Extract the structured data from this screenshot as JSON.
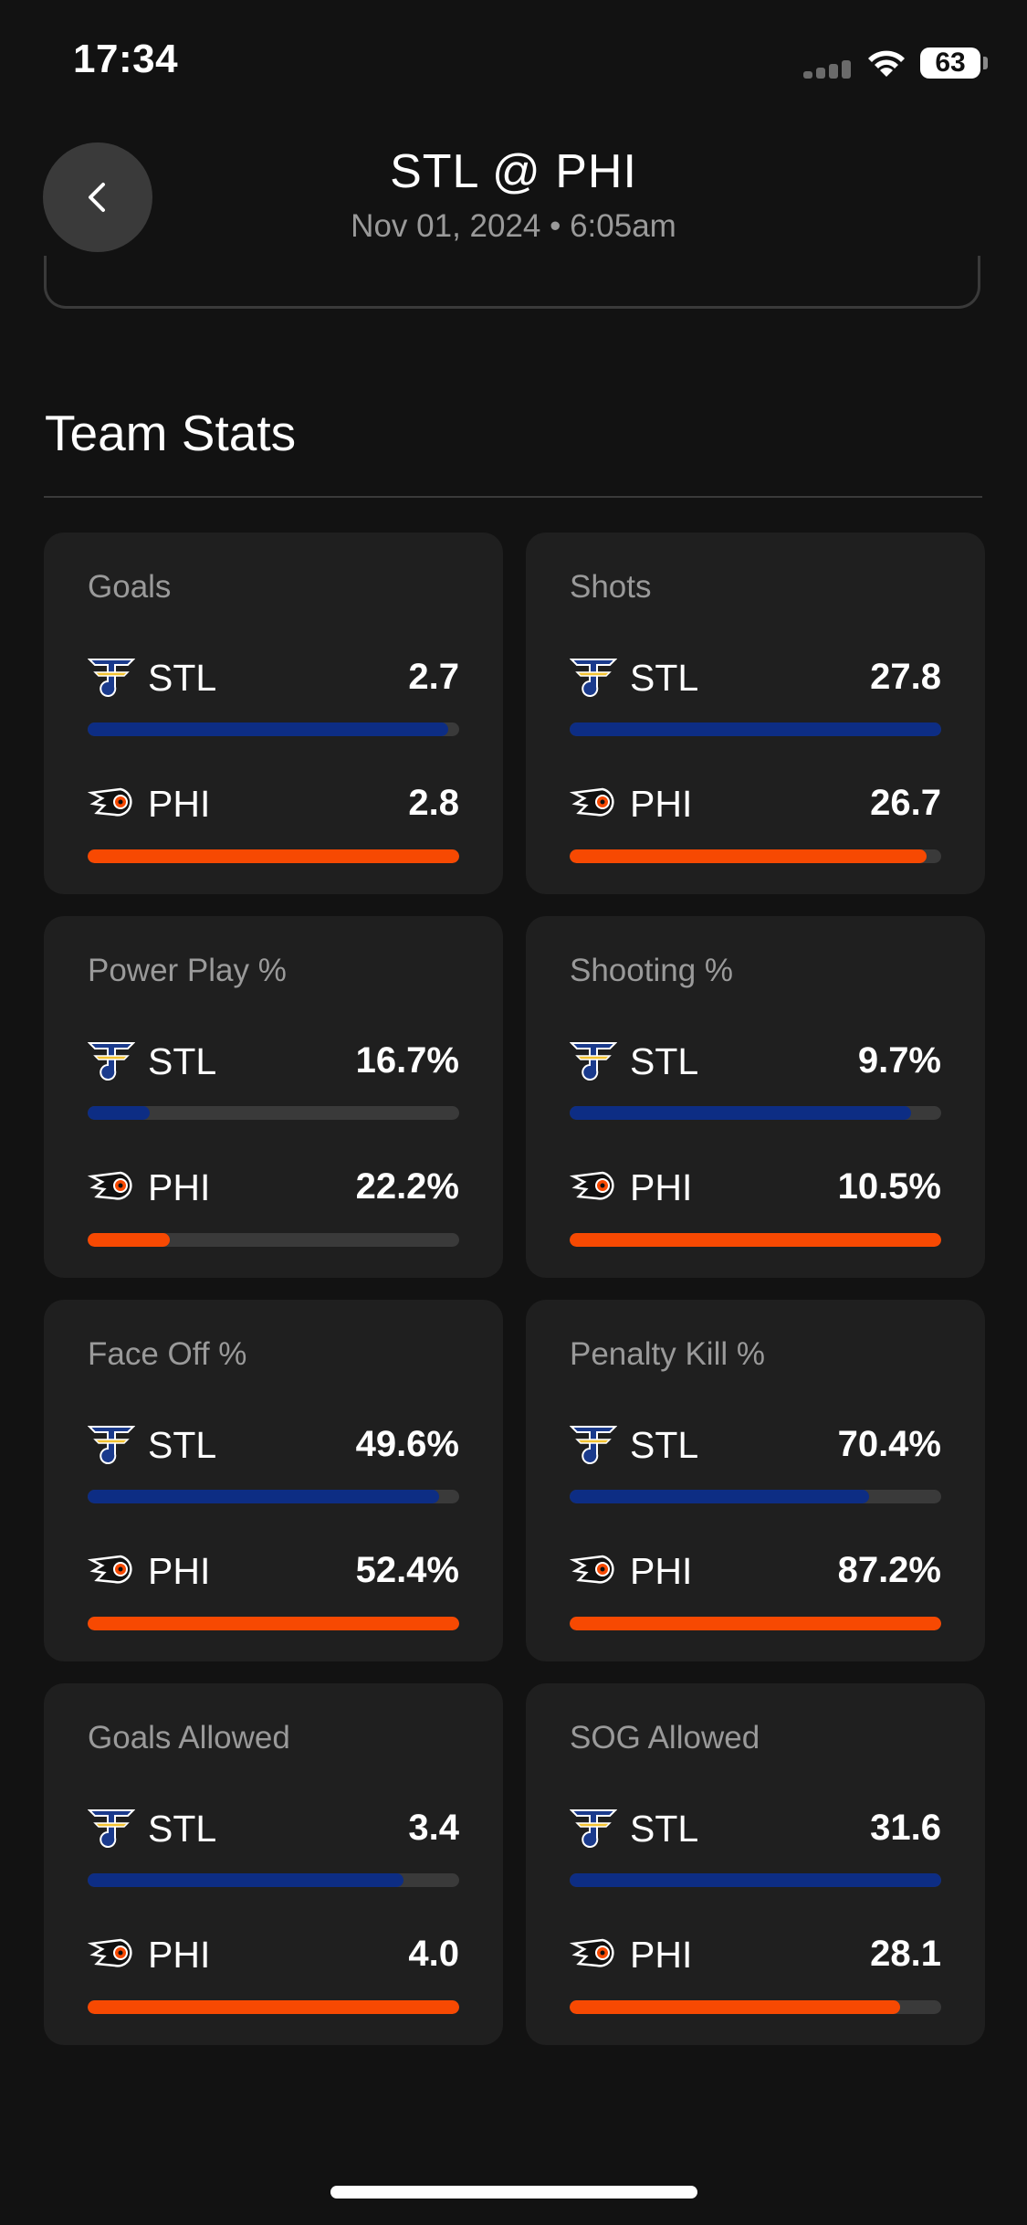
{
  "status_bar": {
    "time": "17:34",
    "battery": "63",
    "icons": [
      "signal-icon",
      "wifi-icon",
      "battery-icon"
    ]
  },
  "header": {
    "title": "STL @ PHI",
    "subtitle": "Nov 01, 2024 • 6:05am",
    "back_icon": "chevron-left-icon"
  },
  "section": {
    "title": "Team Stats"
  },
  "colors": {
    "stl": "#0d2d84",
    "phi": "#f74902",
    "track": "#3a3a3a",
    "card": "#1f1f1f"
  },
  "stats": [
    {
      "label": "Goals",
      "stl": {
        "team": "STL",
        "value": "2.7",
        "fill": 0.97
      },
      "phi": {
        "team": "PHI",
        "value": "2.8",
        "fill": 1.0
      }
    },
    {
      "label": "Shots",
      "stl": {
        "team": "STL",
        "value": "27.8",
        "fill": 1.0
      },
      "phi": {
        "team": "PHI",
        "value": "26.7",
        "fill": 0.96
      }
    },
    {
      "label": "Power Play %",
      "stl": {
        "team": "STL",
        "value": "16.7%",
        "fill": 0.167
      },
      "phi": {
        "team": "PHI",
        "value": "22.2%",
        "fill": 0.222
      }
    },
    {
      "label": "Shooting %",
      "stl": {
        "team": "STL",
        "value": "9.7%",
        "fill": 0.92
      },
      "phi": {
        "team": "PHI",
        "value": "10.5%",
        "fill": 1.0
      }
    },
    {
      "label": "Face Off %",
      "stl": {
        "team": "STL",
        "value": "49.6%",
        "fill": 0.946
      },
      "phi": {
        "team": "PHI",
        "value": "52.4%",
        "fill": 1.0
      }
    },
    {
      "label": "Penalty Kill %",
      "stl": {
        "team": "STL",
        "value": "70.4%",
        "fill": 0.807
      },
      "phi": {
        "team": "PHI",
        "value": "87.2%",
        "fill": 1.0
      }
    },
    {
      "label": "Goals Allowed",
      "stl": {
        "team": "STL",
        "value": "3.4",
        "fill": 0.85
      },
      "phi": {
        "team": "PHI",
        "value": "4.0",
        "fill": 1.0
      }
    },
    {
      "label": "SOG Allowed",
      "stl": {
        "team": "STL",
        "value": "31.6",
        "fill": 1.0
      },
      "phi": {
        "team": "PHI",
        "value": "28.1",
        "fill": 0.889
      }
    }
  ]
}
